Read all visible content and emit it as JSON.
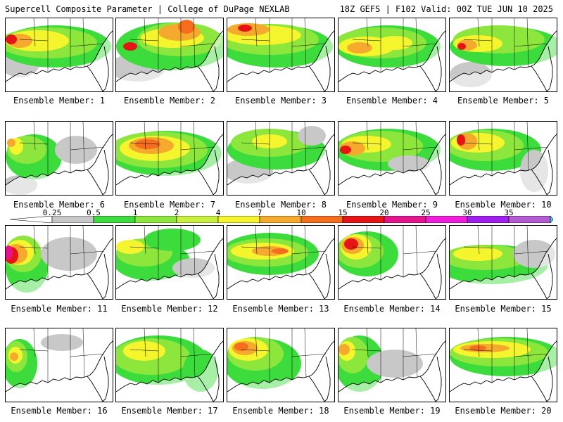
{
  "header": {
    "title": "Supercell Composite Parameter | College of DuPage NEXLAB",
    "run_info": "18Z GEFS | F102 Valid: 00Z TUE JUN 10 2025"
  },
  "legend": {
    "ticks": [
      "0.25",
      "0.5",
      "1",
      "2",
      "4",
      "7",
      "10",
      "15",
      "20",
      "25",
      "30",
      "35"
    ],
    "colors": [
      "#c8c8c8",
      "#3cdc3c",
      "#8ce63c",
      "#c8f03c",
      "#f5f52d",
      "#f5aa2d",
      "#f56e1e",
      "#e61414",
      "#e6148c",
      "#f01edc",
      "#a01ef0",
      "#b45ad2",
      "#1ee6f0"
    ]
  },
  "field_colors": {
    "gray": "#c8c8c8",
    "green": "#3cdc3c",
    "lime": "#8ce63c",
    "yellow_green": "#c8f03c",
    "yellow": "#f5f52d",
    "orange": "#f5aa2d",
    "dark_orange": "#f56e1e",
    "red": "#e61414",
    "magenta": "#e6148c"
  },
  "members": [
    {
      "label": "Ensemble Member: 1"
    },
    {
      "label": "Ensemble Member: 2"
    },
    {
      "label": "Ensemble Member: 3"
    },
    {
      "label": "Ensemble Member: 4"
    },
    {
      "label": "Ensemble Member: 5"
    },
    {
      "label": "Ensemble Member: 6"
    },
    {
      "label": "Ensemble Member: 7"
    },
    {
      "label": "Ensemble Member: 8"
    },
    {
      "label": "Ensemble Member: 9"
    },
    {
      "label": "Ensemble Member: 10"
    },
    {
      "label": "Ensemble Member: 11"
    },
    {
      "label": "Ensemble Member: 12"
    },
    {
      "label": "Ensemble Member: 13"
    },
    {
      "label": "Ensemble Member: 14"
    },
    {
      "label": "Ensemble Member: 15"
    },
    {
      "label": "Ensemble Member: 16"
    },
    {
      "label": "Ensemble Member: 17"
    },
    {
      "label": "Ensemble Member: 18"
    },
    {
      "label": "Ensemble Member: 19"
    },
    {
      "label": "Ensemble Member: 20"
    }
  ]
}
